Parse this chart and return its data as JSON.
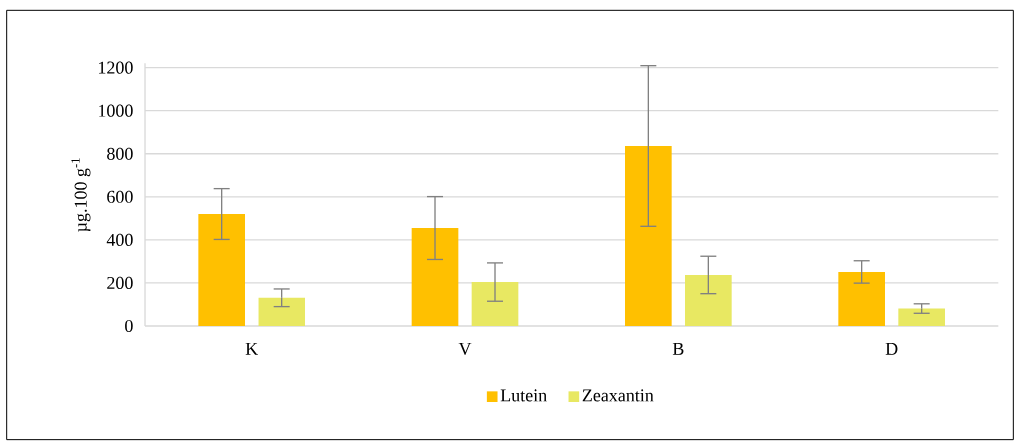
{
  "chart_data": {
    "type": "bar",
    "ylabel": "µg.100 g$^{-1}$",
    "categories": [
      "K",
      "V",
      "B",
      "D"
    ],
    "series": [
      {
        "name": "Lutein",
        "color": "#ffc000",
        "values": [
          520,
          455,
          836,
          251
        ],
        "errors": [
          118,
          146,
          373,
          52
        ]
      },
      {
        "name": "Zeaxantin",
        "color": "#e8e862",
        "values": [
          131,
          204,
          237,
          81
        ],
        "errors": [
          41,
          89,
          87,
          22
        ]
      }
    ],
    "ylim": [
      0,
      1220
    ],
    "yticks": [
      0,
      200,
      400,
      600,
      800,
      1000,
      1200
    ],
    "grid": "y",
    "legend": "bottom"
  }
}
